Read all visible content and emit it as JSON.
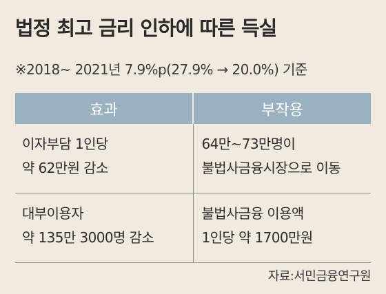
{
  "title": "법정 최고 금리 인하에 따른 득실",
  "subtitle": "※2018~ 2021년 7.9%p(27.9% → 20.0%) 기준",
  "table": {
    "headers": [
      "효과",
      "부작용"
    ],
    "rows": [
      {
        "effect": [
          "이자부담 1인당",
          "약 62만원 감소"
        ],
        "side_effect": [
          "64만~73만명이",
          "불법사금융시장으로 이동"
        ]
      },
      {
        "effect": [
          "대부이용자",
          "약 135만 3000명 감소"
        ],
        "side_effect": [
          "불법사금융 이용액",
          "1인당 약 1700만원"
        ]
      }
    ]
  },
  "source": "자료:서민금융연구원",
  "colors": {
    "background": "#f1eadf",
    "header_fill": "#99b1c1",
    "header_text": "#ffffff",
    "rule": "#8f8f8f"
  }
}
